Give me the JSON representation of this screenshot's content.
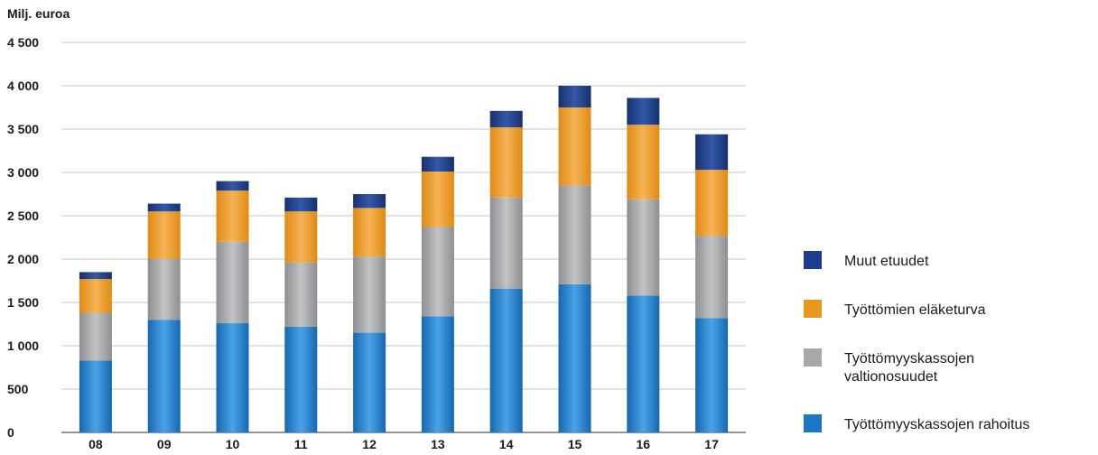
{
  "chart_data": {
    "type": "bar",
    "stacked": true,
    "ylabel": "Milj. euroa",
    "ylim": [
      0,
      4500
    ],
    "yticks": [
      0,
      500,
      1000,
      1500,
      2000,
      2500,
      3000,
      3500,
      4000,
      4500
    ],
    "ytick_labels": [
      "0",
      "500",
      "1 000",
      "1 500",
      "2 000",
      "2 500",
      "3 000",
      "3 500",
      "4 000",
      "4 500"
    ],
    "categories": [
      "08",
      "09",
      "10",
      "11",
      "12",
      "13",
      "14",
      "15",
      "16",
      "17"
    ],
    "grid": true,
    "legend_position": "right",
    "series": [
      {
        "name": "Työttömyyskassojen rahoitus",
        "color": "#1a78c2",
        "values": [
          830,
          1300,
          1260,
          1220,
          1150,
          1340,
          1660,
          1710,
          1580,
          1320
        ]
      },
      {
        "name": "Työttömyyskassojen valtionosuudet",
        "color": "#a7a8aa",
        "values": [
          550,
          700,
          940,
          740,
          880,
          1030,
          1050,
          1140,
          1110,
          950
        ]
      },
      {
        "name": "Työttömien eläketurva",
        "color": "#e8961e",
        "values": [
          390,
          550,
          590,
          590,
          560,
          640,
          810,
          900,
          860,
          760
        ]
      },
      {
        "name": "Muut etuudet",
        "color": "#1e3e8a",
        "values": [
          80,
          90,
          110,
          160,
          160,
          170,
          190,
          250,
          310,
          410
        ]
      }
    ],
    "legend_order": [
      3,
      2,
      1,
      0
    ],
    "legend_labels": [
      [
        "Muut etuudet"
      ],
      [
        "Työttömien eläketurva"
      ],
      [
        "Työttömyyskassojen",
        "valtionosuudet"
      ],
      [
        "Työttömyyskassojen rahoitus"
      ]
    ]
  }
}
